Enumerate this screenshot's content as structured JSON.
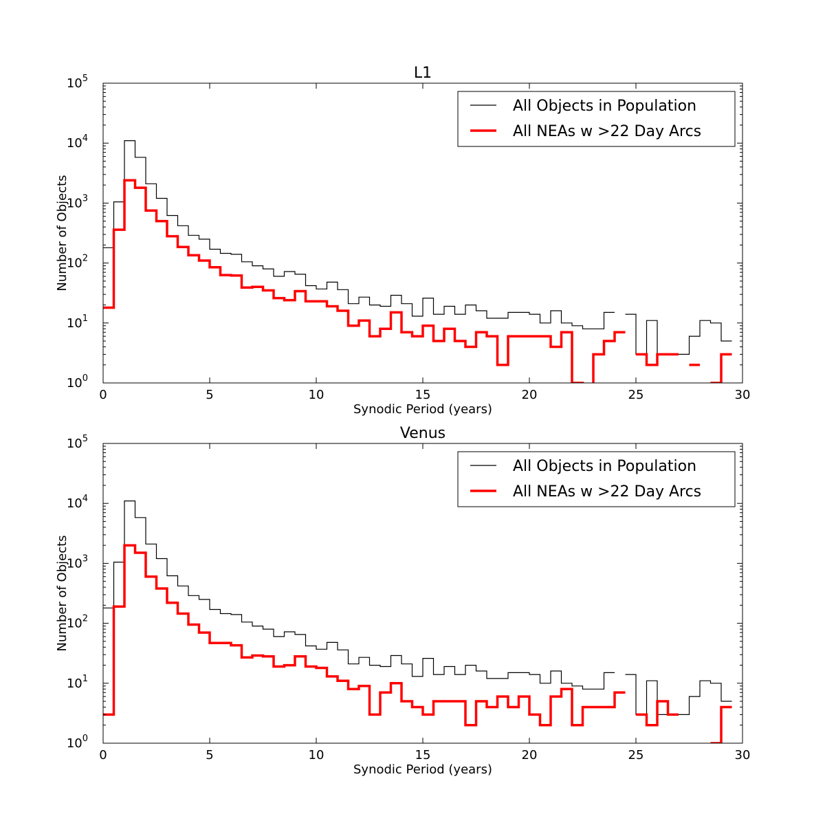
{
  "chart_data": [
    {
      "type": "step-histogram",
      "title": "L1",
      "xlabel": "Synodic Period (years)",
      "ylabel": "Number of Objects",
      "xlim": [
        0,
        30
      ],
      "ylim": [
        1,
        100000
      ],
      "yscale": "log",
      "grid": false,
      "legend_position": "top-right",
      "bin_width": 0.5,
      "xticks": [
        "0",
        "5",
        "10",
        "15",
        "20",
        "25",
        "30"
      ],
      "yticks": [
        {
          "base": "10",
          "exp": "0"
        },
        {
          "base": "10",
          "exp": "1"
        },
        {
          "base": "10",
          "exp": "2"
        },
        {
          "base": "10",
          "exp": "3"
        },
        {
          "base": "10",
          "exp": "4"
        },
        {
          "base": "10",
          "exp": "5"
        }
      ],
      "series": [
        {
          "name": "All Objects in Population",
          "color": "#000000",
          "values": [
            180,
            1050,
            11000,
            5800,
            2100,
            1200,
            620,
            420,
            290,
            250,
            170,
            145,
            140,
            105,
            90,
            80,
            60,
            72,
            65,
            42,
            37,
            48,
            36,
            21,
            27,
            20,
            19,
            29,
            21,
            13,
            26,
            14,
            19,
            14,
            20,
            16,
            12,
            12,
            15,
            15,
            14,
            10,
            16,
            10,
            9,
            8,
            8,
            15,
            null,
            14,
            3,
            11,
            3,
            3,
            3,
            6,
            11,
            10,
            5
          ]
        },
        {
          "name": "All NEAs w >22 Day Arcs",
          "color": "#ff0000",
          "values": [
            18,
            360,
            2400,
            1800,
            750,
            500,
            280,
            185,
            135,
            110,
            85,
            63,
            62,
            39,
            40,
            35,
            26,
            24,
            34,
            23,
            23,
            19,
            16,
            9,
            11,
            6,
            8,
            15,
            7,
            6,
            9,
            5,
            8,
            5,
            4,
            7,
            6,
            2,
            6,
            6,
            6,
            6,
            4,
            7,
            1,
            0.3,
            3,
            5,
            7,
            null,
            3,
            2,
            3,
            3,
            null,
            2,
            null,
            1,
            3
          ]
        }
      ]
    },
    {
      "type": "step-histogram",
      "title": "Venus",
      "xlabel": "Synodic Period (years)",
      "ylabel": "Number of Objects",
      "xlim": [
        0,
        30
      ],
      "ylim": [
        1,
        100000
      ],
      "yscale": "log",
      "grid": false,
      "legend_position": "top-right",
      "bin_width": 0.5,
      "xticks": [
        "0",
        "5",
        "10",
        "15",
        "20",
        "25",
        "30"
      ],
      "yticks": [
        {
          "base": "10",
          "exp": "0"
        },
        {
          "base": "10",
          "exp": "1"
        },
        {
          "base": "10",
          "exp": "2"
        },
        {
          "base": "10",
          "exp": "3"
        },
        {
          "base": "10",
          "exp": "4"
        },
        {
          "base": "10",
          "exp": "5"
        }
      ],
      "series": [
        {
          "name": "All Objects in Population",
          "color": "#000000",
          "values": [
            180,
            1050,
            11000,
            5800,
            2100,
            1200,
            620,
            420,
            290,
            250,
            170,
            145,
            140,
            105,
            90,
            80,
            60,
            72,
            65,
            42,
            37,
            48,
            36,
            21,
            27,
            20,
            19,
            29,
            21,
            13,
            26,
            14,
            19,
            14,
            20,
            16,
            12,
            12,
            15,
            15,
            14,
            10,
            16,
            10,
            9,
            8,
            8,
            15,
            null,
            14,
            3,
            11,
            3,
            3,
            3,
            6,
            11,
            10,
            5
          ]
        },
        {
          "name": "All NEAs w >22 Day Arcs",
          "color": "#ff0000",
          "values": [
            3,
            190,
            2000,
            1500,
            600,
            380,
            220,
            145,
            95,
            70,
            47,
            47,
            43,
            27,
            29,
            28,
            19,
            20,
            28,
            19,
            18,
            13,
            11,
            8,
            9,
            3,
            7,
            10,
            5,
            4,
            3,
            5,
            5,
            5,
            2,
            5,
            4,
            6,
            4,
            6,
            3,
            2,
            6,
            8,
            2,
            4,
            4,
            4,
            7,
            null,
            3,
            2,
            5,
            3,
            null,
            null,
            null,
            1,
            4
          ]
        }
      ]
    }
  ]
}
